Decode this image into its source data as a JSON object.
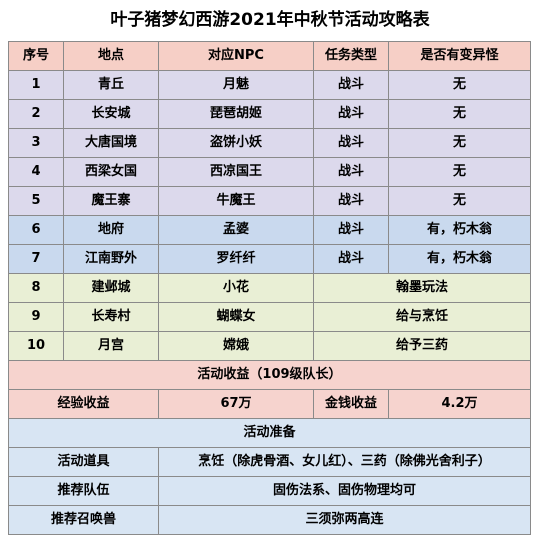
{
  "title": "叶子猪梦幻西游2021年中秋节活动攻略表",
  "headers": [
    "序号",
    "地点",
    "对应NPC",
    "任务类型",
    "是否有变异怪"
  ],
  "rows": [
    {
      "no": "1",
      "place": "青丘",
      "npc": "月魅",
      "type": "战斗",
      "mutant": "无"
    },
    {
      "no": "2",
      "place": "长安城",
      "npc": "琵琶胡姬",
      "type": "战斗",
      "mutant": "无"
    },
    {
      "no": "3",
      "place": "大唐国境",
      "npc": "盗饼小妖",
      "type": "战斗",
      "mutant": "无"
    },
    {
      "no": "4",
      "place": "西梁女国",
      "npc": "西凉国王",
      "type": "战斗",
      "mutant": "无"
    },
    {
      "no": "5",
      "place": "魔王寨",
      "npc": "牛魔王",
      "type": "战斗",
      "mutant": "无"
    },
    {
      "no": "6",
      "place": "地府",
      "npc": "孟婆",
      "type": "战斗",
      "mutant": "有，朽木翁"
    },
    {
      "no": "7",
      "place": "江南野外",
      "npc": "罗纤纤",
      "type": "战斗",
      "mutant": "有，朽木翁"
    }
  ],
  "rows_merged": [
    {
      "no": "8",
      "place": "建邺城",
      "npc": "小花",
      "task": "翰墨玩法"
    },
    {
      "no": "9",
      "place": "长寿村",
      "npc": "蝴蝶女",
      "task": "给与烹饪"
    },
    {
      "no": "10",
      "place": "月宫",
      "npc": "嫦娥",
      "task": "给予三药"
    }
  ],
  "rewards": {
    "heading": "活动收益（109级队长）",
    "exp_label": "经验收益",
    "exp_value": "67万",
    "money_label": "金钱收益",
    "money_value": "4.2万"
  },
  "prep": {
    "heading": "活动准备",
    "items": [
      {
        "label": "活动道具",
        "value": "烹饪（除虎骨酒、女儿红）、三药（除佛光舍利子）"
      },
      {
        "label": "推荐队伍",
        "value": "固伤法系、固伤物理均可"
      },
      {
        "label": "推荐召唤兽",
        "value": "三须弥两高连"
      }
    ]
  }
}
